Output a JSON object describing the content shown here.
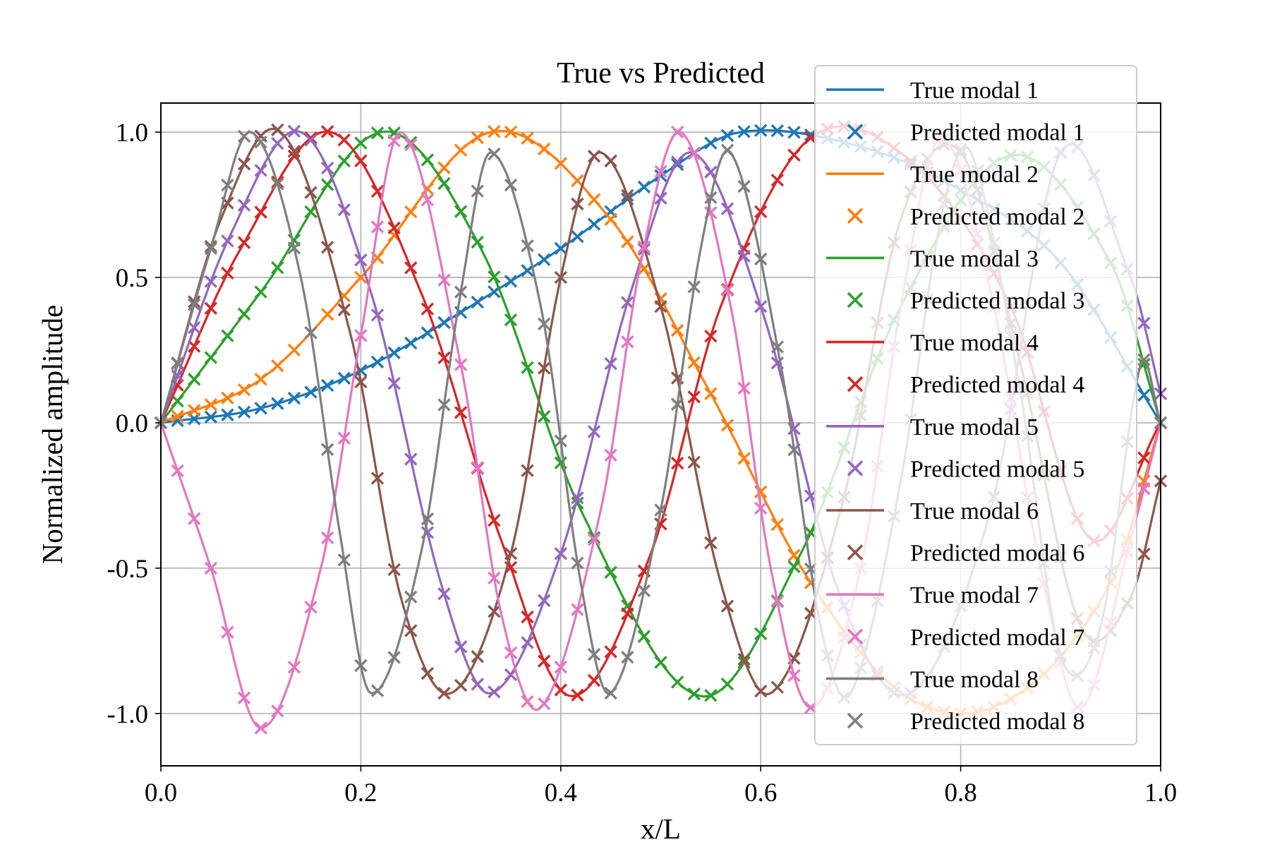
{
  "chart_data": {
    "type": "line",
    "title": "True vs Predicted",
    "xlabel": "x/L",
    "ylabel": "Normalized amplitude",
    "xlim": [
      0.0,
      1.0
    ],
    "ylim": [
      -1.18,
      1.1
    ],
    "x_ticks": [
      0.0,
      0.2,
      0.4,
      0.6,
      0.8,
      1.0
    ],
    "x_tick_labels": [
      "0.0",
      "0.2",
      "0.4",
      "0.6",
      "0.8",
      "1.0"
    ],
    "y_ticks": [
      1.0,
      0.5,
      0.0,
      -0.5,
      -1.0
    ],
    "y_tick_labels": [
      "1.0",
      "0.5",
      "0.0",
      "-0.5",
      "-1.0"
    ],
    "grid": true,
    "legend_position": "top-right",
    "x_samples": 61,
    "series": [
      {
        "name": "True modal 1",
        "marker_name": "Predicted modal 1",
        "color": "#1f77b4",
        "points": [
          [
            0.0,
            0.0
          ],
          [
            0.1,
            0.05
          ],
          [
            0.2,
            0.18
          ],
          [
            0.3,
            0.38
          ],
          [
            0.4,
            0.6
          ],
          [
            0.5,
            0.85
          ],
          [
            0.58,
            1.0
          ],
          [
            0.7,
            0.95
          ],
          [
            0.8,
            0.8
          ],
          [
            0.9,
            0.55
          ],
          [
            1.0,
            0.0
          ]
        ]
      },
      {
        "name": "True modal 2",
        "marker_name": "Predicted modal 2",
        "color": "#ff7f0e",
        "points": [
          [
            0.0,
            0.0
          ],
          [
            0.1,
            0.15
          ],
          [
            0.2,
            0.5
          ],
          [
            0.33,
            1.0
          ],
          [
            0.45,
            0.7
          ],
          [
            0.55,
            0.1
          ],
          [
            0.65,
            -0.55
          ],
          [
            0.75,
            -0.95
          ],
          [
            0.85,
            -0.95
          ],
          [
            0.95,
            -0.55
          ],
          [
            1.0,
            0.0
          ]
        ]
      },
      {
        "name": "True modal 3",
        "marker_name": "Predicted modal 3",
        "color": "#2ca02c",
        "points": [
          [
            0.0,
            0.0
          ],
          [
            0.1,
            0.45
          ],
          [
            0.22,
            1.0
          ],
          [
            0.32,
            0.6
          ],
          [
            0.42,
            -0.3
          ],
          [
            0.54,
            -0.94
          ],
          [
            0.64,
            -0.45
          ],
          [
            0.74,
            0.4
          ],
          [
            0.85,
            0.92
          ],
          [
            0.95,
            0.55
          ],
          [
            1.0,
            0.0
          ]
        ]
      },
      {
        "name": "True modal 4",
        "marker_name": "Predicted modal 4",
        "color": "#d62728",
        "points": [
          [
            0.0,
            0.0
          ],
          [
            0.08,
            0.6
          ],
          [
            0.17,
            1.0
          ],
          [
            0.26,
            0.45
          ],
          [
            0.34,
            -0.4
          ],
          [
            0.41,
            -0.94
          ],
          [
            0.49,
            -0.45
          ],
          [
            0.56,
            0.4
          ],
          [
            0.65,
            0.98
          ],
          [
            0.75,
            0.9
          ],
          [
            0.85,
            0.4
          ],
          [
            0.93,
            -0.4
          ],
          [
            1.0,
            0.0
          ]
        ]
      },
      {
        "name": "True modal 5",
        "marker_name": "Predicted modal 5",
        "color": "#9467bd",
        "points": [
          [
            0.0,
            0.0
          ],
          [
            0.07,
            0.65
          ],
          [
            0.14,
            1.0
          ],
          [
            0.21,
            0.45
          ],
          [
            0.28,
            -0.55
          ],
          [
            0.33,
            -0.93
          ],
          [
            0.4,
            -0.45
          ],
          [
            0.47,
            0.45
          ],
          [
            0.53,
            0.93
          ],
          [
            0.6,
            0.4
          ],
          [
            0.68,
            -0.6
          ],
          [
            0.75,
            -0.93
          ],
          [
            0.83,
            -0.3
          ],
          [
            0.9,
            0.93
          ],
          [
            0.97,
            0.5
          ],
          [
            1.0,
            0.1
          ]
        ]
      },
      {
        "name": "True modal 6",
        "marker_name": "Predicted modal 6",
        "color": "#8c564b",
        "points": [
          [
            0.0,
            0.0
          ],
          [
            0.06,
            0.7
          ],
          [
            0.12,
            1.0
          ],
          [
            0.19,
            0.3
          ],
          [
            0.24,
            -0.6
          ],
          [
            0.29,
            -0.93
          ],
          [
            0.35,
            -0.45
          ],
          [
            0.4,
            0.5
          ],
          [
            0.44,
            0.93
          ],
          [
            0.5,
            0.4
          ],
          [
            0.56,
            -0.55
          ],
          [
            0.61,
            -0.93
          ],
          [
            0.68,
            -0.3
          ],
          [
            0.74,
            0.7
          ],
          [
            0.8,
            0.93
          ],
          [
            0.86,
            0.2
          ],
          [
            0.92,
            -0.7
          ],
          [
            0.97,
            -0.6
          ],
          [
            1.0,
            -0.2
          ]
        ]
      },
      {
        "name": "True modal 7",
        "marker_name": "Predicted modal 7",
        "color": "#e377c2",
        "points": [
          [
            0.0,
            0.0
          ],
          [
            0.05,
            -0.5
          ],
          [
            0.1,
            -1.05
          ],
          [
            0.16,
            -0.5
          ],
          [
            0.2,
            0.3
          ],
          [
            0.24,
            1.0
          ],
          [
            0.3,
            0.2
          ],
          [
            0.34,
            -0.65
          ],
          [
            0.38,
            -0.98
          ],
          [
            0.44,
            -0.3
          ],
          [
            0.48,
            0.55
          ],
          [
            0.52,
            1.0
          ],
          [
            0.57,
            0.4
          ],
          [
            0.61,
            -0.5
          ],
          [
            0.65,
            -0.98
          ],
          [
            0.7,
            -0.5
          ],
          [
            0.74,
            0.4
          ],
          [
            0.78,
            0.98
          ],
          [
            0.83,
            0.45
          ],
          [
            0.88,
            -0.5
          ],
          [
            0.92,
            -0.98
          ],
          [
            0.97,
            -0.4
          ],
          [
            1.0,
            0.0
          ]
        ]
      },
      {
        "name": "True modal 8",
        "marker_name": "Predicted modal 8",
        "color": "#7f7f7f",
        "points": [
          [
            0.0,
            0.0
          ],
          [
            0.05,
            0.6
          ],
          [
            0.09,
            1.0
          ],
          [
            0.14,
            0.5
          ],
          [
            0.18,
            -0.4
          ],
          [
            0.21,
            -0.93
          ],
          [
            0.26,
            -0.45
          ],
          [
            0.3,
            0.45
          ],
          [
            0.33,
            0.93
          ],
          [
            0.38,
            0.4
          ],
          [
            0.42,
            -0.55
          ],
          [
            0.45,
            -0.93
          ],
          [
            0.5,
            -0.3
          ],
          [
            0.54,
            0.6
          ],
          [
            0.57,
            0.93
          ],
          [
            0.62,
            0.2
          ],
          [
            0.66,
            -0.7
          ],
          [
            0.69,
            -0.93
          ],
          [
            0.74,
            -0.2
          ],
          [
            0.78,
            0.7
          ],
          [
            0.81,
            0.93
          ],
          [
            0.86,
            0.1
          ],
          [
            0.9,
            -0.8
          ],
          [
            0.94,
            -0.7
          ],
          [
            0.98,
            0.2
          ],
          [
            1.0,
            0.0
          ]
        ]
      }
    ]
  }
}
